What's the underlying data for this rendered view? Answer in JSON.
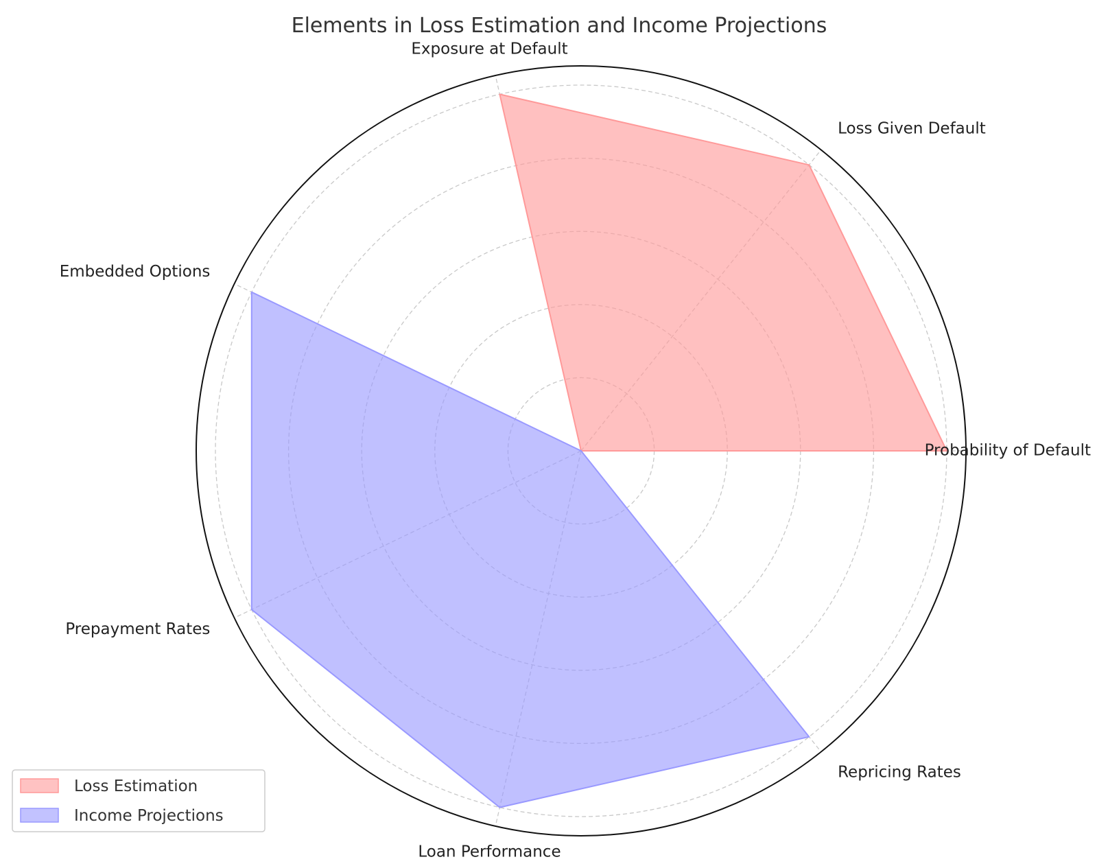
{
  "chart_data": {
    "type": "radar",
    "title": "Elements in Loss Estimation and Income Projections",
    "categories": [
      "Probability of Default",
      "Loss Given Default",
      "Exposure at Default",
      "Embedded Options",
      "Prepayment Rates",
      "Loan Performance",
      "Repricing Rates"
    ],
    "series": [
      {
        "name": "Loss Estimation",
        "values": [
          5,
          5,
          5,
          0,
          0,
          0,
          0
        ],
        "color": "#ff9999"
      },
      {
        "name": "Income Projections",
        "values": [
          0,
          0,
          0,
          5,
          5,
          5,
          5
        ],
        "color": "#9999ff"
      }
    ],
    "rlim": [
      0,
      5
    ],
    "grid": true,
    "legend": "bottom-left"
  }
}
